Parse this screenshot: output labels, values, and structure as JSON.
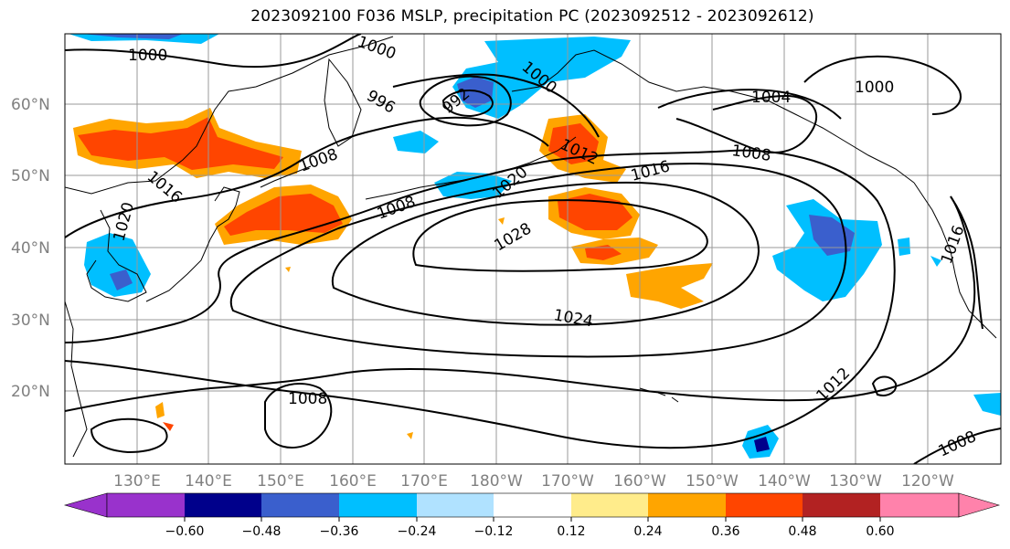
{
  "title": "2023092100 F036 MSLP, precipitation PC (2023092512 - 2023092612)",
  "lat_labels": [
    "60°N",
    "50°N",
    "40°N",
    "30°N",
    "20°N"
  ],
  "lon_labels": [
    "130°E",
    "140°E",
    "150°E",
    "160°E",
    "170°E",
    "180°W",
    "170°W",
    "160°W",
    "150°W",
    "140°W",
    "130°W",
    "120°W"
  ],
  "isobar_labels": [
    {
      "text": "1000"
    },
    {
      "text": "1000"
    },
    {
      "text": "1000"
    },
    {
      "text": "1000"
    },
    {
      "text": "996"
    },
    {
      "text": "992"
    },
    {
      "text": "1004"
    },
    {
      "text": "1008"
    },
    {
      "text": "1008"
    },
    {
      "text": "1008"
    },
    {
      "text": "1008"
    },
    {
      "text": "1008"
    },
    {
      "text": "1012"
    },
    {
      "text": "1012"
    },
    {
      "text": "1016"
    },
    {
      "text": "1016"
    },
    {
      "text": "1016"
    },
    {
      "text": "1020"
    },
    {
      "text": "1020"
    },
    {
      "text": "1028"
    },
    {
      "text": "1024"
    }
  ],
  "colorbar": {
    "colors": [
      "#9932cc",
      "#00008b",
      "#3a5fcd",
      "#00bfff",
      "#b0e2ff",
      "#ffffff",
      "#ffec8b",
      "#ffa500",
      "#ff4500",
      "#b22222",
      "#ff82ab"
    ],
    "tick_labels": [
      "−0.60",
      "−0.48",
      "−0.36",
      "−0.24",
      "−0.12",
      "0.12",
      "0.24",
      "0.36",
      "0.48",
      "0.60"
    ]
  }
}
